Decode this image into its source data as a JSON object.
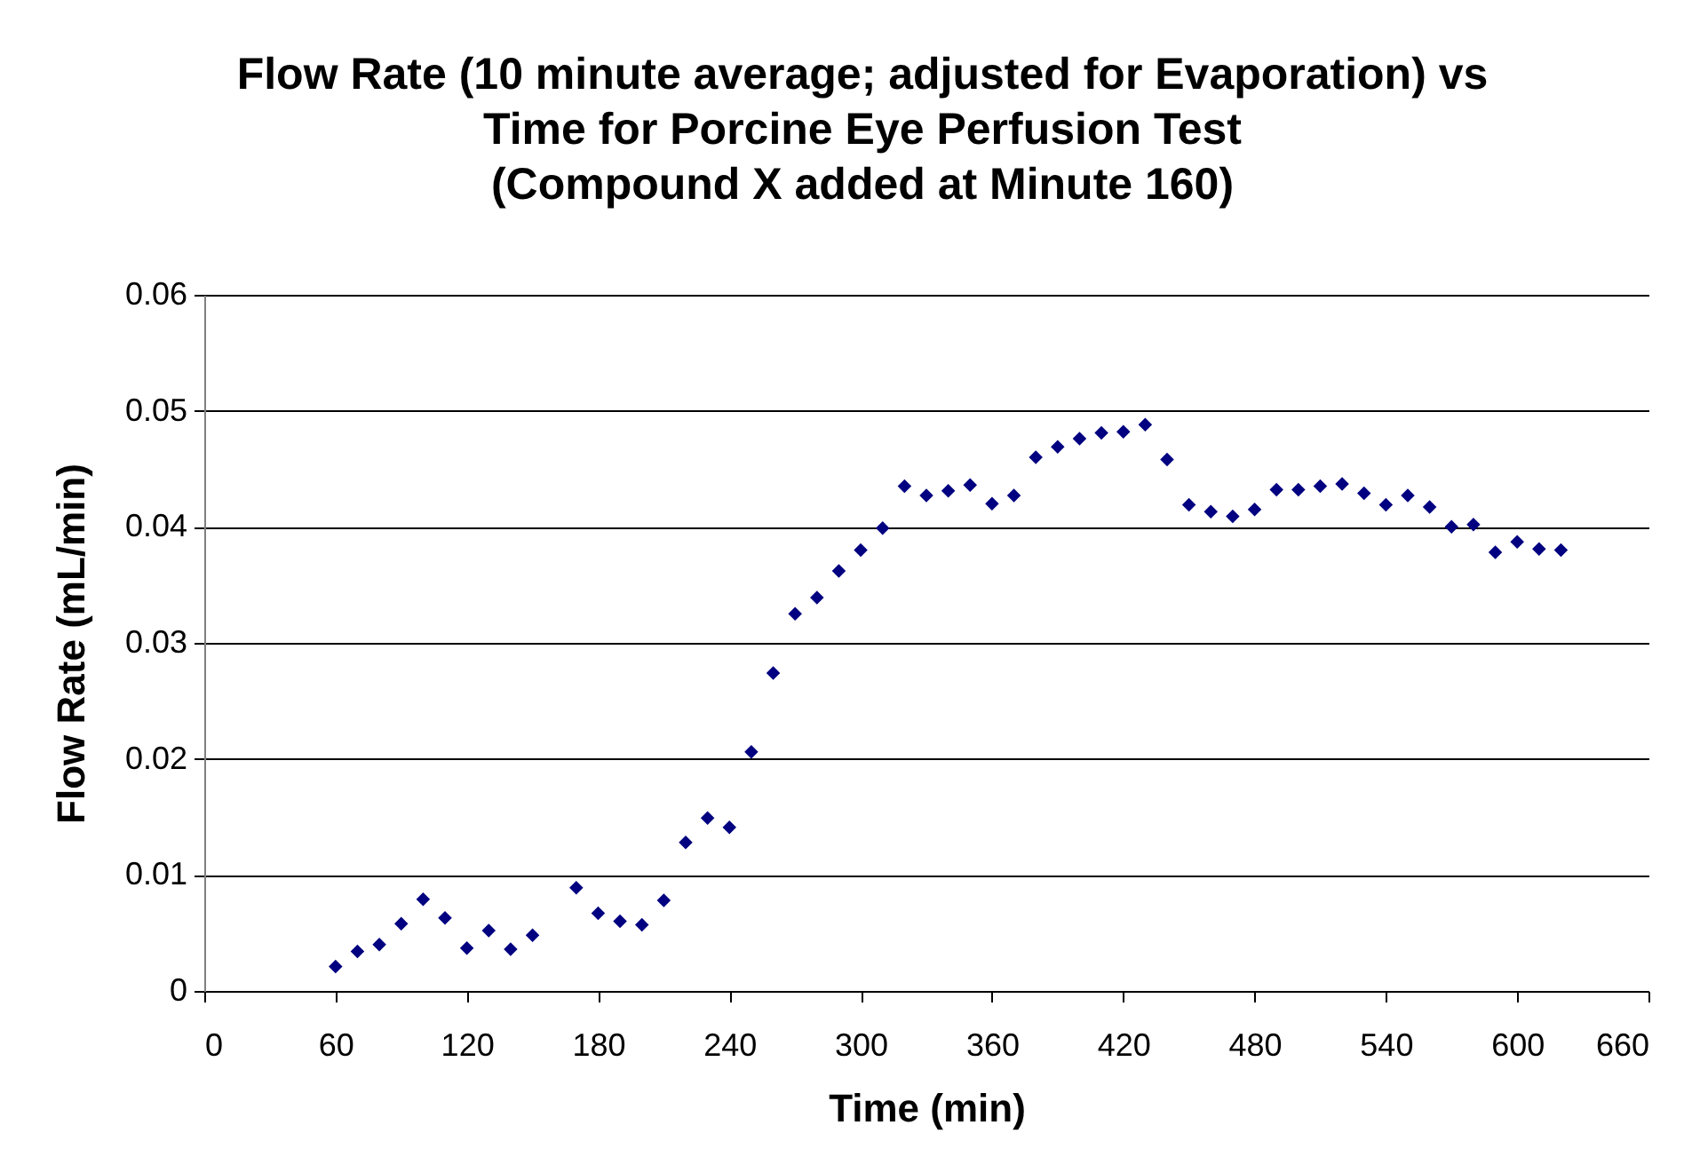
{
  "chart_data": {
    "type": "scatter",
    "title": "Flow Rate (10 minute average; adjusted for Evaporation) vs\nTime for Porcine Eye Perfusion Test\n(Compound X added at Minute 160)",
    "xlabel": "Time (min)",
    "ylabel": "Flow Rate (mL/min)",
    "x": [
      60,
      70,
      80,
      90,
      100,
      110,
      120,
      130,
      140,
      150,
      170,
      180,
      190,
      200,
      210,
      220,
      230,
      240,
      250,
      260,
      270,
      280,
      290,
      300,
      310,
      320,
      330,
      340,
      350,
      360,
      370,
      380,
      390,
      400,
      410,
      420,
      430,
      440,
      450,
      460,
      470,
      480,
      490,
      500,
      510,
      520,
      530,
      540,
      550,
      560,
      570,
      580,
      590,
      600,
      610,
      620
    ],
    "series": [
      {
        "color": "#000080",
        "values": [
          0.0021,
          0.0034,
          0.004,
          0.0058,
          0.0079,
          0.0063,
          0.0037,
          0.0052,
          0.0036,
          0.0048,
          0.0089,
          0.0067,
          0.006,
          0.0057,
          0.0078,
          0.0128,
          0.0149,
          0.0141,
          0.0206,
          0.0274,
          0.0325,
          0.0339,
          0.0362,
          0.038,
          0.0399,
          0.0435,
          0.0427,
          0.0431,
          0.0436,
          0.042,
          0.0427,
          0.046,
          0.0469,
          0.0476,
          0.0481,
          0.0482,
          0.0488,
          0.0458,
          0.0419,
          0.0413,
          0.0409,
          0.0415,
          0.0432,
          0.0432,
          0.0435,
          0.0437,
          0.0429,
          0.0419,
          0.0427,
          0.0417,
          0.04,
          0.0402,
          0.0378,
          0.0387,
          0.0381,
          0.038
        ]
      }
    ],
    "xlim": [
      0,
      660
    ],
    "xticks": [
      0,
      60,
      120,
      180,
      240,
      300,
      360,
      420,
      480,
      540,
      600,
      660
    ],
    "ylim": [
      0,
      0.06
    ],
    "yticks": [
      0,
      0.01,
      0.02,
      0.03,
      0.04,
      0.05,
      0.06
    ],
    "grid": "y",
    "marker": "diamond",
    "legend": false
  }
}
